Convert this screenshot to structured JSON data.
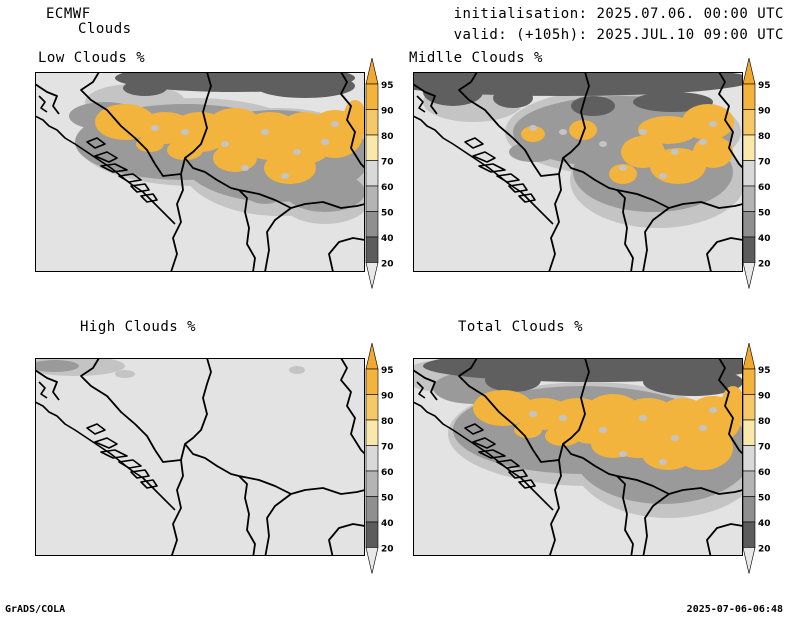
{
  "header": {
    "model": "ECMWF",
    "product": "Clouds",
    "init_line": "initialisation: 2025.07.06. 00:00 UTC",
    "valid_line": "valid: (+105h): 2025.JUL.10 09:00 UTC"
  },
  "panels": [
    {
      "id": "low",
      "title": "Low Clouds %"
    },
    {
      "id": "middle",
      "title": "Midlle Clouds %"
    },
    {
      "id": "high",
      "title": "High Clouds %"
    },
    {
      "id": "total",
      "title": "Total Clouds %"
    }
  ],
  "colorbar": {
    "levels": [
      "95",
      "90",
      "80",
      "70",
      "60",
      "50",
      "40",
      "20"
    ],
    "colors": {
      "above95": "#f0a830",
      "c90_95": "#f2b43c",
      "c80_90": "#f5c868",
      "c70_80": "#f8e8aa",
      "c60_70": "#d9d9d9",
      "c50_60": "#b4b4b4",
      "c40_50": "#8f8f8f",
      "c20_40": "#5c5c5c",
      "below20": "#e8e8e8"
    }
  },
  "map_colors": {
    "background": "#e3e3e3",
    "dark_cloud": "#5f5f5f",
    "mid_grey": "#9a9a9a",
    "light_grey": "#c4c4c4",
    "cloud_orange": "#f2b43c",
    "border": "#000000"
  },
  "footer": {
    "left": "GrADS/COLA",
    "right": "2025-07-06-06:48"
  }
}
